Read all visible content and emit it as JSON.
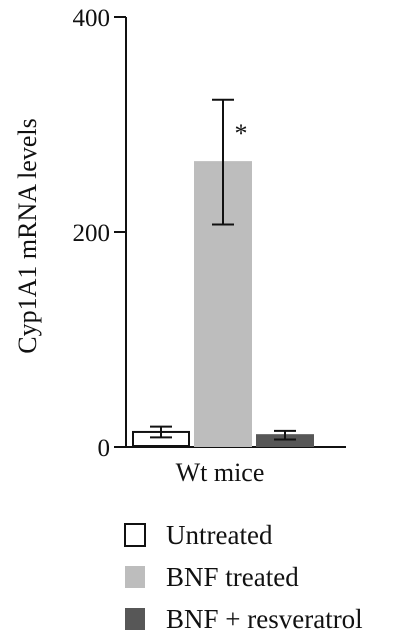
{
  "chart_data": {
    "type": "bar",
    "title": "",
    "xlabel": "",
    "ylabel": "Cyp1A1 mRNA levels",
    "ylim": [
      0,
      400
    ],
    "yticks": [
      0,
      200,
      400
    ],
    "categories": [
      "Wt mice"
    ],
    "series": [
      {
        "name": "Untreated",
        "values": [
          14
        ],
        "error": [
          5
        ],
        "color": "#ffffff",
        "stroke": "#111111"
      },
      {
        "name": "BNF treated",
        "values": [
          265
        ],
        "error": [
          58
        ],
        "color": "#bdbdbd",
        "stroke": "#bdbdbd",
        "annotation": "*"
      },
      {
        "name": "BNF + resveratrol",
        "values": [
          11
        ],
        "error": [
          4
        ],
        "color": "#575757",
        "stroke": "#575757"
      }
    ],
    "legend_position": "bottom",
    "grid": false
  }
}
